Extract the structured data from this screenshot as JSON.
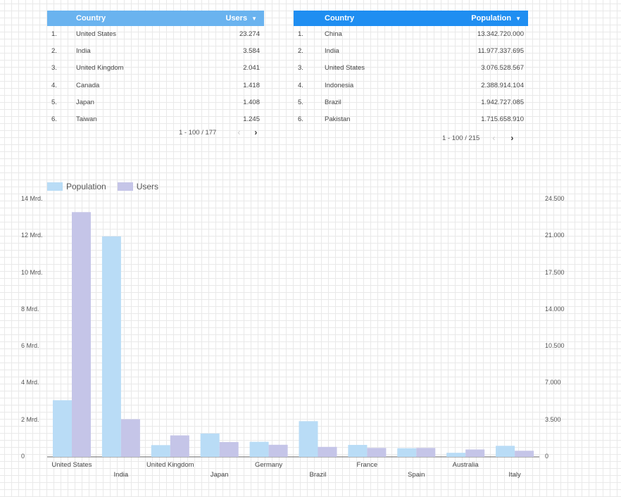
{
  "tables": [
    {
      "header": {
        "country": "Country",
        "metric": "Users",
        "sort_icon": "▼"
      },
      "rows": [
        {
          "rank": "1.",
          "country": "United States",
          "value": "23.274"
        },
        {
          "rank": "2.",
          "country": "India",
          "value": "3.584"
        },
        {
          "rank": "3.",
          "country": "United Kingdom",
          "value": "2.041"
        },
        {
          "rank": "4.",
          "country": "Canada",
          "value": "1.418"
        },
        {
          "rank": "5.",
          "country": "Japan",
          "value": "1.408"
        },
        {
          "rank": "6.",
          "country": "Taiwan",
          "value": "1.245"
        }
      ],
      "pager": {
        "range": "1 - 100 / 177",
        "prev_icon": "chevron-left-icon",
        "next_icon": "chevron-right-icon"
      }
    },
    {
      "header": {
        "country": "Country",
        "metric": "Population",
        "sort_icon": "▼"
      },
      "rows": [
        {
          "rank": "1.",
          "country": "China",
          "value": "13.342.720.000"
        },
        {
          "rank": "2.",
          "country": "India",
          "value": "11.977.337.695"
        },
        {
          "rank": "3.",
          "country": "United States",
          "value": "3.076.528.567"
        },
        {
          "rank": "4.",
          "country": "Indonesia",
          "value": "2.388.914.104"
        },
        {
          "rank": "5.",
          "country": "Brazil",
          "value": "1.942.727.085"
        },
        {
          "rank": "6.",
          "country": "Pakistan",
          "value": "1.715.658.910"
        }
      ],
      "pager": {
        "range": "1 - 100 / 215",
        "prev_icon": "chevron-left-icon",
        "next_icon": "chevron-right-icon"
      }
    }
  ],
  "chart_data": {
    "type": "bar",
    "legend": [
      "Population",
      "Users"
    ],
    "legend_position": "top-left",
    "colors": {
      "Population": "#b9dcf6",
      "Users": "#c5c5e8"
    },
    "categories": [
      "United States",
      "India",
      "United Kingdom",
      "Japan",
      "Germany",
      "Brazil",
      "France",
      "Spain",
      "Australia",
      "Italy"
    ],
    "series": [
      {
        "name": "Population",
        "axis": "left",
        "values": [
          3.08,
          11.98,
          0.64,
          1.27,
          0.82,
          1.94,
          0.65,
          0.47,
          0.22,
          0.6
        ]
      },
      {
        "name": "Users",
        "axis": "right",
        "values": [
          23274,
          3584,
          2041,
          1408,
          1150,
          950,
          850,
          850,
          700,
          580
        ]
      }
    ],
    "y_left": {
      "ticks": [
        "0",
        "2 Mrd.",
        "4 Mrd.",
        "6 Mrd.",
        "8 Mrd.",
        "10 Mrd.",
        "12 Mrd.",
        "14 Mrd."
      ],
      "range": [
        0,
        14
      ]
    },
    "y_right": {
      "ticks": [
        "0",
        "3.500",
        "7.000",
        "10.500",
        "14.000",
        "17.500",
        "21.000",
        "24.500"
      ],
      "range": [
        0,
        24500
      ]
    }
  }
}
